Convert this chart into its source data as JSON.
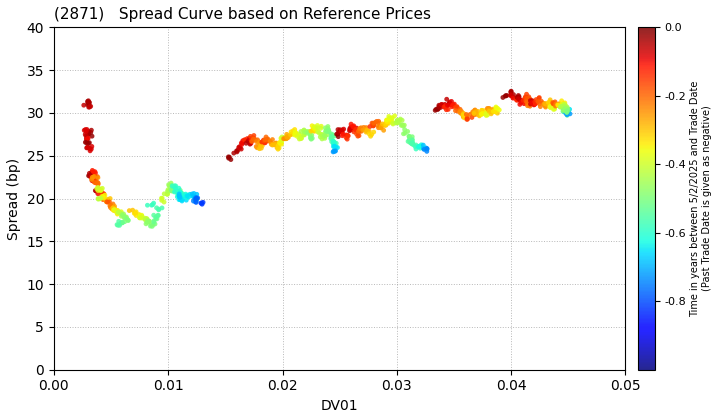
{
  "title": "(2871)   Spread Curve based on Reference Prices",
  "xlabel": "DV01",
  "ylabel": "Spread (bp)",
  "xlim": [
    0.0,
    0.05
  ],
  "ylim": [
    0,
    40
  ],
  "xticks": [
    0.0,
    0.01,
    0.02,
    0.03,
    0.04,
    0.05
  ],
  "yticks": [
    0,
    5,
    10,
    15,
    20,
    25,
    30,
    35,
    40
  ],
  "colorbar_label": "Time in years between 5/2/2025 and Trade Date\n(Past Trade Date is given as negative)",
  "colorbar_vmin": -1.0,
  "colorbar_vmax": 0.0,
  "colorbar_ticks": [
    0.0,
    -0.2,
    -0.4,
    -0.6,
    -0.8
  ],
  "background_color": "#ffffff",
  "grid_color": "#888888",
  "point_size": 12,
  "segments": [
    {
      "x": [
        0.0028,
        0.003,
        0.003
      ],
      "y": [
        31.0,
        31.2,
        30.8
      ],
      "c": [
        -0.02,
        -0.04,
        -0.06
      ]
    },
    {
      "x": [
        0.003,
        0.0031,
        0.003,
        0.0029,
        0.003
      ],
      "y": [
        27.5,
        27.8,
        27.2,
        28.0,
        27.0
      ],
      "c": [
        -0.02,
        -0.04,
        -0.06,
        -0.08,
        -0.1
      ]
    },
    {
      "x": [
        0.003,
        0.003,
        0.0031
      ],
      "y": [
        26.5,
        26.0,
        25.8
      ],
      "c": [
        -0.02,
        -0.05,
        -0.08
      ]
    },
    {
      "x": [
        0.0032,
        0.0033,
        0.0034,
        0.0035,
        0.0036,
        0.0037,
        0.0038,
        0.0035
      ],
      "y": [
        22.5,
        22.8,
        22.2,
        23.0,
        22.0,
        22.5,
        21.8,
        22.3
      ],
      "c": [
        -0.02,
        -0.05,
        -0.08,
        -0.12,
        -0.15,
        -0.18,
        -0.21,
        -0.25
      ]
    },
    {
      "x": [
        0.0038,
        0.004,
        0.0042,
        0.0044,
        0.0045,
        0.0046,
        0.0043,
        0.004,
        0.0039,
        0.0041
      ],
      "y": [
        21.0,
        20.8,
        20.5,
        20.2,
        20.0,
        19.8,
        20.3,
        21.0,
        21.2,
        20.0
      ],
      "c": [
        -0.05,
        -0.1,
        -0.15,
        -0.2,
        -0.25,
        -0.3,
        -0.35,
        -0.38,
        -0.4,
        -0.42
      ]
    },
    {
      "x": [
        0.0048,
        0.005,
        0.0052,
        0.0054,
        0.0055,
        0.0056,
        0.0058,
        0.006,
        0.0062,
        0.0064,
        0.006,
        0.0057
      ],
      "y": [
        19.5,
        19.2,
        19.0,
        18.8,
        18.6,
        18.4,
        18.2,
        18.0,
        17.8,
        17.5,
        17.2,
        17.0
      ],
      "c": [
        -0.18,
        -0.22,
        -0.26,
        -0.3,
        -0.34,
        -0.38,
        -0.42,
        -0.45,
        -0.48,
        -0.5,
        -0.52,
        -0.55
      ]
    },
    {
      "x": [
        0.007,
        0.0073,
        0.0076,
        0.0078,
        0.008,
        0.0082,
        0.0084,
        0.0086,
        0.0088,
        0.009,
        0.0092,
        0.0085
      ],
      "y": [
        18.5,
        18.2,
        18.0,
        17.8,
        17.6,
        17.4,
        17.2,
        17.0,
        17.5,
        18.0,
        18.8,
        19.2
      ],
      "c": [
        -0.3,
        -0.33,
        -0.36,
        -0.39,
        -0.42,
        -0.45,
        -0.48,
        -0.5,
        -0.52,
        -0.54,
        -0.56,
        -0.58
      ]
    },
    {
      "x": [
        0.0095,
        0.0098,
        0.01,
        0.0102,
        0.0104,
        0.0106,
        0.0108,
        0.011,
        0.0112,
        0.0105,
        0.0108,
        0.011,
        0.0112,
        0.0114,
        0.011
      ],
      "y": [
        20.0,
        20.5,
        21.0,
        21.5,
        21.2,
        21.0,
        20.8,
        20.5,
        20.2,
        21.5,
        21.0,
        20.5,
        20.0,
        19.8,
        20.3
      ],
      "c": [
        -0.4,
        -0.42,
        -0.44,
        -0.46,
        -0.48,
        -0.5,
        -0.52,
        -0.54,
        -0.56,
        -0.58,
        -0.6,
        -0.62,
        -0.64,
        -0.66,
        -0.68
      ]
    },
    {
      "x": [
        0.0115,
        0.012,
        0.0122,
        0.0124,
        0.0125
      ],
      "y": [
        20.5,
        20.3,
        20.5,
        20.0,
        19.8
      ],
      "c": [
        -0.62,
        -0.65,
        -0.68,
        -0.72,
        -0.75
      ]
    },
    {
      "x": [
        0.0125,
        0.013
      ],
      "y": [
        20.0,
        19.5
      ],
      "c": [
        -0.78,
        -0.82
      ]
    },
    {
      "x": [
        0.0155,
        0.016,
        0.0162,
        0.0165,
        0.0168
      ],
      "y": [
        24.8,
        25.5,
        26.0,
        26.5,
        26.8
      ],
      "c": [
        -0.02,
        -0.04,
        -0.07,
        -0.1,
        -0.13
      ]
    },
    {
      "x": [
        0.017,
        0.0172,
        0.0174,
        0.0175,
        0.0176,
        0.0178,
        0.018,
        0.0182
      ],
      "y": [
        26.5,
        26.8,
        27.0,
        27.2,
        26.8,
        26.5,
        26.2,
        26.0
      ],
      "c": [
        -0.05,
        -0.08,
        -0.12,
        -0.16,
        -0.2,
        -0.23,
        -0.26,
        -0.3
      ]
    },
    {
      "x": [
        0.0183,
        0.0185,
        0.0187,
        0.019,
        0.0192,
        0.0194,
        0.0196,
        0.0198,
        0.02,
        0.0202
      ],
      "y": [
        26.5,
        26.8,
        27.0,
        26.8,
        26.5,
        26.2,
        26.0,
        26.5,
        27.0,
        27.2
      ],
      "c": [
        -0.14,
        -0.17,
        -0.2,
        -0.23,
        -0.26,
        -0.29,
        -0.32,
        -0.35,
        -0.38,
        -0.4
      ]
    },
    {
      "x": [
        0.0203,
        0.0205,
        0.0207,
        0.021,
        0.0212,
        0.0214,
        0.0216,
        0.0218,
        0.022,
        0.0222,
        0.0224,
        0.0225
      ],
      "y": [
        27.0,
        27.3,
        27.5,
        27.8,
        27.5,
        27.2,
        27.0,
        27.5,
        28.0,
        27.8,
        27.5,
        27.2
      ],
      "c": [
        -0.24,
        -0.27,
        -0.3,
        -0.33,
        -0.36,
        -0.38,
        -0.4,
        -0.42,
        -0.44,
        -0.46,
        -0.48,
        -0.5
      ]
    },
    {
      "x": [
        0.0226,
        0.0228,
        0.023,
        0.0232,
        0.0234,
        0.0235,
        0.0237,
        0.0239,
        0.024,
        0.0242,
        0.0243,
        0.0244
      ],
      "y": [
        28.0,
        28.2,
        28.5,
        28.0,
        27.5,
        27.0,
        27.5,
        28.0,
        27.8,
        27.5,
        27.0,
        26.5
      ],
      "c": [
        -0.32,
        -0.35,
        -0.38,
        -0.4,
        -0.42,
        -0.44,
        -0.46,
        -0.48,
        -0.5,
        -0.52,
        -0.54,
        -0.56
      ]
    },
    {
      "x": [
        0.0245,
        0.0246,
        0.0246
      ],
      "y": [
        26.5,
        26.0,
        25.5
      ],
      "c": [
        -0.6,
        -0.65,
        -0.72
      ]
    },
    {
      "x": [
        0.0248,
        0.025,
        0.0252,
        0.0254,
        0.0256
      ],
      "y": [
        27.5,
        27.8,
        28.0,
        27.5,
        27.2
      ],
      "c": [
        -0.02,
        -0.05,
        -0.08,
        -0.11,
        -0.14
      ]
    },
    {
      "x": [
        0.0258,
        0.026,
        0.0262,
        0.0264,
        0.0266,
        0.0268,
        0.027,
        0.0272,
        0.0274,
        0.0276
      ],
      "y": [
        28.0,
        28.2,
        28.5,
        28.0,
        27.5,
        28.0,
        28.3,
        28.0,
        27.8,
        27.5
      ],
      "c": [
        -0.05,
        -0.08,
        -0.11,
        -0.14,
        -0.17,
        -0.2,
        -0.23,
        -0.26,
        -0.29,
        -0.32
      ]
    },
    {
      "x": [
        0.0278,
        0.028,
        0.0282,
        0.0284,
        0.0286,
        0.0288,
        0.029,
        0.0292,
        0.0294,
        0.0296,
        0.0298,
        0.03
      ],
      "y": [
        28.5,
        28.8,
        29.0,
        28.5,
        28.2,
        28.5,
        28.8,
        29.0,
        29.2,
        29.5,
        29.0,
        28.8
      ],
      "c": [
        -0.14,
        -0.17,
        -0.2,
        -0.23,
        -0.26,
        -0.29,
        -0.32,
        -0.34,
        -0.36,
        -0.38,
        -0.4,
        -0.43
      ]
    },
    {
      "x": [
        0.0302,
        0.0305,
        0.0308,
        0.031,
        0.0312,
        0.0314,
        0.0316,
        0.0318
      ],
      "y": [
        29.2,
        28.5,
        27.8,
        27.2,
        26.8,
        26.5,
        26.2,
        26.0
      ],
      "c": [
        -0.44,
        -0.46,
        -0.48,
        -0.5,
        -0.52,
        -0.54,
        -0.56,
        -0.58
      ]
    },
    {
      "x": [
        0.032,
        0.0323,
        0.0326
      ],
      "y": [
        26.2,
        26.0,
        25.8
      ],
      "c": [
        -0.62,
        -0.68,
        -0.74
      ]
    },
    {
      "x": [
        0.0335,
        0.0338,
        0.034,
        0.0342,
        0.0344
      ],
      "y": [
        30.5,
        30.8,
        31.0,
        30.8,
        30.5
      ],
      "c": [
        -0.02,
        -0.04,
        -0.07,
        -0.1,
        -0.13
      ]
    },
    {
      "x": [
        0.0345,
        0.0347,
        0.035,
        0.0352,
        0.0354,
        0.0356,
        0.0358,
        0.036
      ],
      "y": [
        31.2,
        31.0,
        30.8,
        30.5,
        30.2,
        30.0,
        29.8,
        29.5
      ],
      "c": [
        -0.06,
        -0.09,
        -0.12,
        -0.16,
        -0.2,
        -0.24,
        -0.28,
        -0.32
      ]
    },
    {
      "x": [
        0.0362,
        0.0365,
        0.0368,
        0.037,
        0.0372,
        0.0374,
        0.0376,
        0.0378
      ],
      "y": [
        29.5,
        30.0,
        30.2,
        30.0,
        29.8,
        30.2,
        30.0,
        29.8
      ],
      "c": [
        -0.16,
        -0.2,
        -0.24,
        -0.28,
        -0.3,
        -0.32,
        -0.35,
        -0.38
      ]
    },
    {
      "x": [
        0.038,
        0.0382,
        0.0384,
        0.0386,
        0.0388
      ],
      "y": [
        30.5,
        30.3,
        30.0,
        30.2,
        30.5
      ],
      "c": [
        -0.24,
        -0.27,
        -0.3,
        -0.33,
        -0.36
      ]
    },
    {
      "x": [
        0.0395,
        0.04,
        0.0402,
        0.0404,
        0.0405
      ],
      "y": [
        32.0,
        32.2,
        32.0,
        31.8,
        31.5
      ],
      "c": [
        -0.02,
        -0.04,
        -0.07,
        -0.1,
        -0.13
      ]
    },
    {
      "x": [
        0.0406,
        0.0408,
        0.041,
        0.0412,
        0.0414,
        0.0415,
        0.0416,
        0.0417
      ],
      "y": [
        31.8,
        31.5,
        31.2,
        31.5,
        31.8,
        31.5,
        31.2,
        31.0
      ],
      "c": [
        -0.04,
        -0.07,
        -0.1,
        -0.13,
        -0.16,
        -0.18,
        -0.2,
        -0.22
      ]
    },
    {
      "x": [
        0.0418,
        0.042,
        0.0422,
        0.0424,
        0.0426,
        0.0428,
        0.043,
        0.0432,
        0.0434,
        0.0435,
        0.0436,
        0.0437
      ],
      "y": [
        31.2,
        31.0,
        31.2,
        31.5,
        31.2,
        31.0,
        30.8,
        31.0,
        31.2,
        31.0,
        30.8,
        30.5
      ],
      "c": [
        -0.07,
        -0.1,
        -0.13,
        -0.16,
        -0.19,
        -0.22,
        -0.25,
        -0.28,
        -0.3,
        -0.32,
        -0.35,
        -0.38
      ]
    },
    {
      "x": [
        0.0438,
        0.044,
        0.0442,
        0.0443,
        0.0444,
        0.0445,
        0.0446,
        0.0447,
        0.0448,
        0.0449
      ],
      "y": [
        31.2,
        31.0,
        30.8,
        31.0,
        31.2,
        31.0,
        30.8,
        30.5,
        30.3,
        30.0
      ],
      "c": [
        -0.18,
        -0.22,
        -0.26,
        -0.3,
        -0.34,
        -0.38,
        -0.42,
        -0.46,
        -0.5,
        -0.54
      ]
    },
    {
      "x": [
        0.0448,
        0.0449,
        0.045
      ],
      "y": [
        30.5,
        30.2,
        30.0
      ],
      "c": [
        -0.6,
        -0.65,
        -0.72
      ]
    },
    {
      "x": [
        0.0445,
        0.0447,
        0.0449
      ],
      "y": [
        30.8,
        30.5,
        30.3
      ],
      "c": [
        -0.44,
        -0.47,
        -0.5
      ]
    }
  ]
}
